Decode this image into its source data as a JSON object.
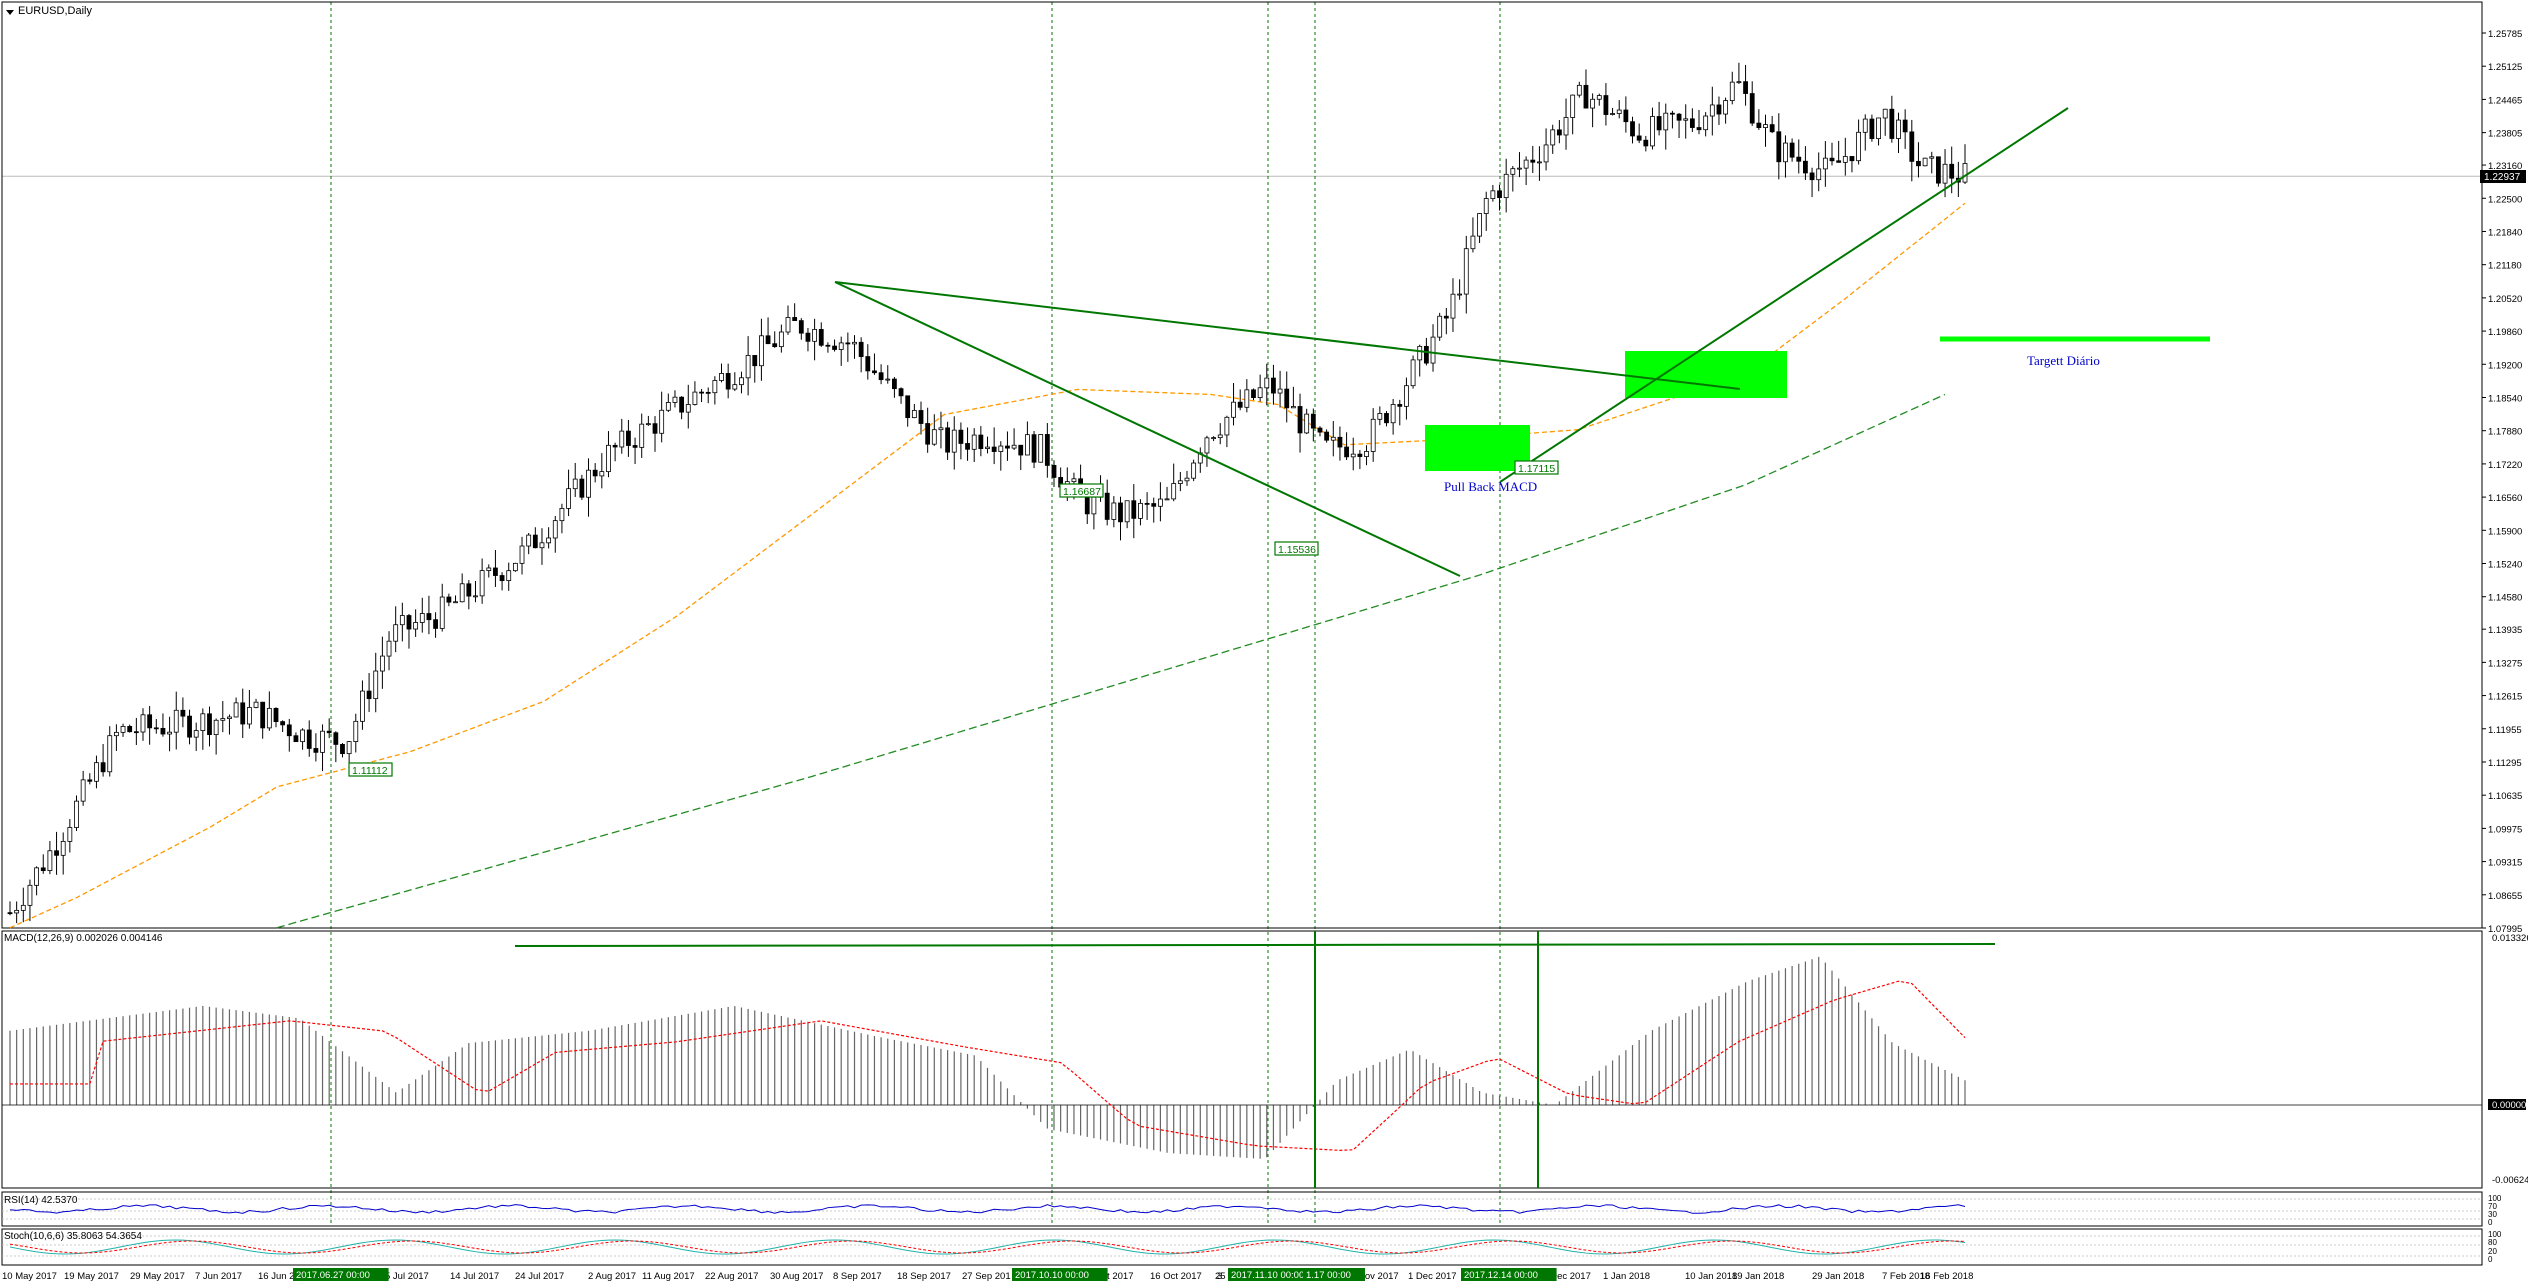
{
  "window": {
    "title": "EURUSD,Daily"
  },
  "main_panel": {
    "current_price": "1.22937",
    "price_ticks": [
      "1.25785",
      "1.25125",
      "1.24465",
      "1.23805",
      "1.23160",
      "1.22500",
      "1.21840",
      "1.21180",
      "1.20520",
      "1.19860",
      "1.19200",
      "1.18540",
      "1.17880",
      "1.17220",
      "1.16560",
      "1.15900",
      "1.15240",
      "1.14580",
      "1.13935",
      "1.13275",
      "1.12615",
      "1.11955",
      "1.11295",
      "1.10635",
      "1.09975",
      "1.09315",
      "1.08655",
      "1.07995"
    ],
    "box_labels": [
      "1.11112",
      "1.16687",
      "1.15536",
      "1.17115"
    ],
    "annotation_pullback": "Pull Back MACD",
    "annotation_target": "Targett Diário"
  },
  "macd_panel": {
    "label": "MACD(12,26,9) 0.002026 0.004146",
    "ticks": [
      "0.013326",
      "0.000000",
      "-0.00624"
    ]
  },
  "rsi_panel": {
    "label": "RSI(14) 42.5370",
    "ticks": [
      "100",
      "70",
      "30",
      "0"
    ]
  },
  "stoch_panel": {
    "label": "Stoch(10,6,6) 35.8063 54.3654",
    "ticks": [
      "100",
      "80",
      "20",
      "0"
    ]
  },
  "time_axis": {
    "labels": [
      "10 May 2017",
      "19 May 2017",
      "29 May 2017",
      "7 Jun 2017",
      "16 Jun 2",
      "5 Jul 2017",
      "14 Jul 2017",
      "24 Jul 2017",
      "2 Aug 2017",
      "11 Aug 2017",
      "22 Aug 2017",
      "30 Aug 2017",
      "8 Sep 2017",
      "18 Sep 2017",
      "27 Sep 201",
      "6 Oct 2017",
      "16 Oct 2017",
      "25 Oct 2017",
      "3",
      "Nov 2017",
      "1 Dec 2017",
      "20 Dec 2017",
      "1 Jan 2018",
      "10 Jan 2018",
      "19 Jan 2018",
      "29 Jan 2018",
      "7 Feb 2018",
      "16 Feb 2018"
    ],
    "highlights": [
      "2017.06.27 00:00",
      "2017.10.10 00:00",
      "2017.11.10 00:00",
      "1.17 00:00",
      "2017.12.14 00:00"
    ]
  },
  "colors": {
    "trendline": "#007700",
    "zone": "#00ff00",
    "ma_fast": "#ff9900",
    "ma_slow": "#228b22",
    "signal": "#ff0000",
    "rsi": "#0000cc",
    "stoch_main": "#20b2aa",
    "annotation": "#0000cc"
  },
  "chart_data": [
    {
      "type": "candlestick",
      "title": "EURUSD,Daily",
      "ylim": [
        1.07995,
        1.25785
      ],
      "x_range": [
        "10 May 2017",
        "16 Feb 2018"
      ],
      "key_levels": [
        1.11112,
        1.16687,
        1.15536,
        1.17115
      ],
      "moving_averages": [
        {
          "style": "dashed orange",
          "points": [
            [
              0,
              1.08
            ],
            [
              10,
              1.086
            ],
            [
              30,
              1.1
            ],
            [
              40,
              1.108
            ],
            [
              60,
              1.115
            ],
            [
              80,
              1.125
            ],
            [
              100,
              1.142
            ],
            [
              120,
              1.162
            ],
            [
              140,
              1.182
            ],
            [
              160,
              1.187
            ],
            [
              180,
              1.186
            ],
            [
              190,
              1.184
            ],
            [
              200,
              1.176
            ],
            [
              215,
              1.177
            ],
            [
              235,
              1.179
            ],
            [
              260,
              1.19
            ],
            [
              275,
              1.205
            ],
            [
              293,
              1.224
            ]
          ]
        },
        {
          "style": "dashed green",
          "points": [
            [
              40,
              1.08
            ],
            [
              80,
              1.095
            ],
            [
              120,
              1.11
            ],
            [
              160,
              1.126
            ],
            [
              200,
              1.142
            ],
            [
              220,
              1.15
            ],
            [
              260,
              1.168
            ],
            [
              290,
              1.186
            ]
          ]
        }
      ],
      "current_price": 1.22937,
      "target": 1.198
    },
    {
      "type": "bar",
      "name": "MACD(12,26,9)",
      "ylim": [
        -0.00624,
        0.013326
      ],
      "main": 0.002026,
      "signal": 0.004146
    }
  ]
}
